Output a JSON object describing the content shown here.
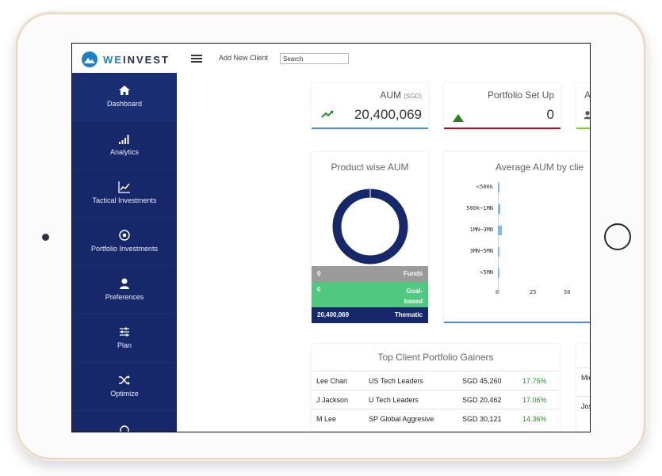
{
  "app": {
    "brand_we": "WE",
    "brand_invest": "INVEST"
  },
  "topbar": {
    "add_client_label": "Add New Client",
    "search_placeholder": "Search"
  },
  "sidebar": {
    "items": [
      {
        "label": "Dashboard",
        "icon": "home-icon",
        "active": true
      },
      {
        "label": "Analytics",
        "icon": "signal-bars-icon",
        "active": false
      },
      {
        "label": "Tactical Investments",
        "icon": "line-chart-icon",
        "active": false
      },
      {
        "label": "Portfolio Investments",
        "icon": "target-icon",
        "active": false
      },
      {
        "label": "Preferences",
        "icon": "user-icon",
        "active": false
      },
      {
        "label": "Plan",
        "icon": "sliders-icon",
        "active": false
      },
      {
        "label": "Optimize",
        "icon": "shuffle-icon",
        "active": false
      }
    ]
  },
  "kpis": [
    {
      "title": "AUM",
      "unit": "(SGD)",
      "value": "20,400,069",
      "icon": "trend-up-icon",
      "accent": "#4a90d9"
    },
    {
      "title": "Portfolio Set Up",
      "value": "0",
      "icon": "triangle-up-icon",
      "accent": "#d0021b"
    },
    {
      "title": "A",
      "icon": "user-icon",
      "accent": "#7ed321"
    }
  ],
  "product_aum": {
    "title": "Product wise AUM",
    "rows": [
      {
        "value": "0",
        "label": "Funds",
        "color": "#9b9b9b"
      },
      {
        "value": "0",
        "label": "Goal-based",
        "color": "#50c87f"
      },
      {
        "value": "20,400,069",
        "label": "Thematic",
        "color": "#16286a"
      }
    ],
    "donut_color": "#16286a"
  },
  "avg_aum": {
    "title": "Average AUM by clie",
    "accent": "#4a90d9"
  },
  "chart_data": {
    "type": "bar",
    "orientation": "horizontal",
    "categories": [
      "<500k",
      "500k~1MN",
      "1MN~3MN",
      "3MN~5MN",
      ">5MN"
    ],
    "values": [
      1,
      2,
      3,
      1,
      1
    ],
    "xlim": [
      0,
      50
    ],
    "xticks": [
      "0",
      "25",
      "50"
    ],
    "color": "#7fb8ea"
  },
  "gainers": {
    "title": "Top Client Portfolio Gainers",
    "rows": [
      {
        "name": "Lee Chan",
        "portfolio": "US Tech Leaders",
        "amount": "SGD 45,260",
        "pct": "17.75%"
      },
      {
        "name": "J Jackson",
        "portfolio": "U Tech Leaders",
        "amount": "SGD 20,462",
        "pct": "17.06%"
      },
      {
        "name": "M Lee",
        "portfolio": "SP Global Aggresive",
        "amount": "SGD 30,121",
        "pct": "14.36%"
      }
    ],
    "pct_color": "#2e8b2e"
  },
  "side_table": {
    "rows": [
      "Mic",
      "Jos"
    ]
  }
}
